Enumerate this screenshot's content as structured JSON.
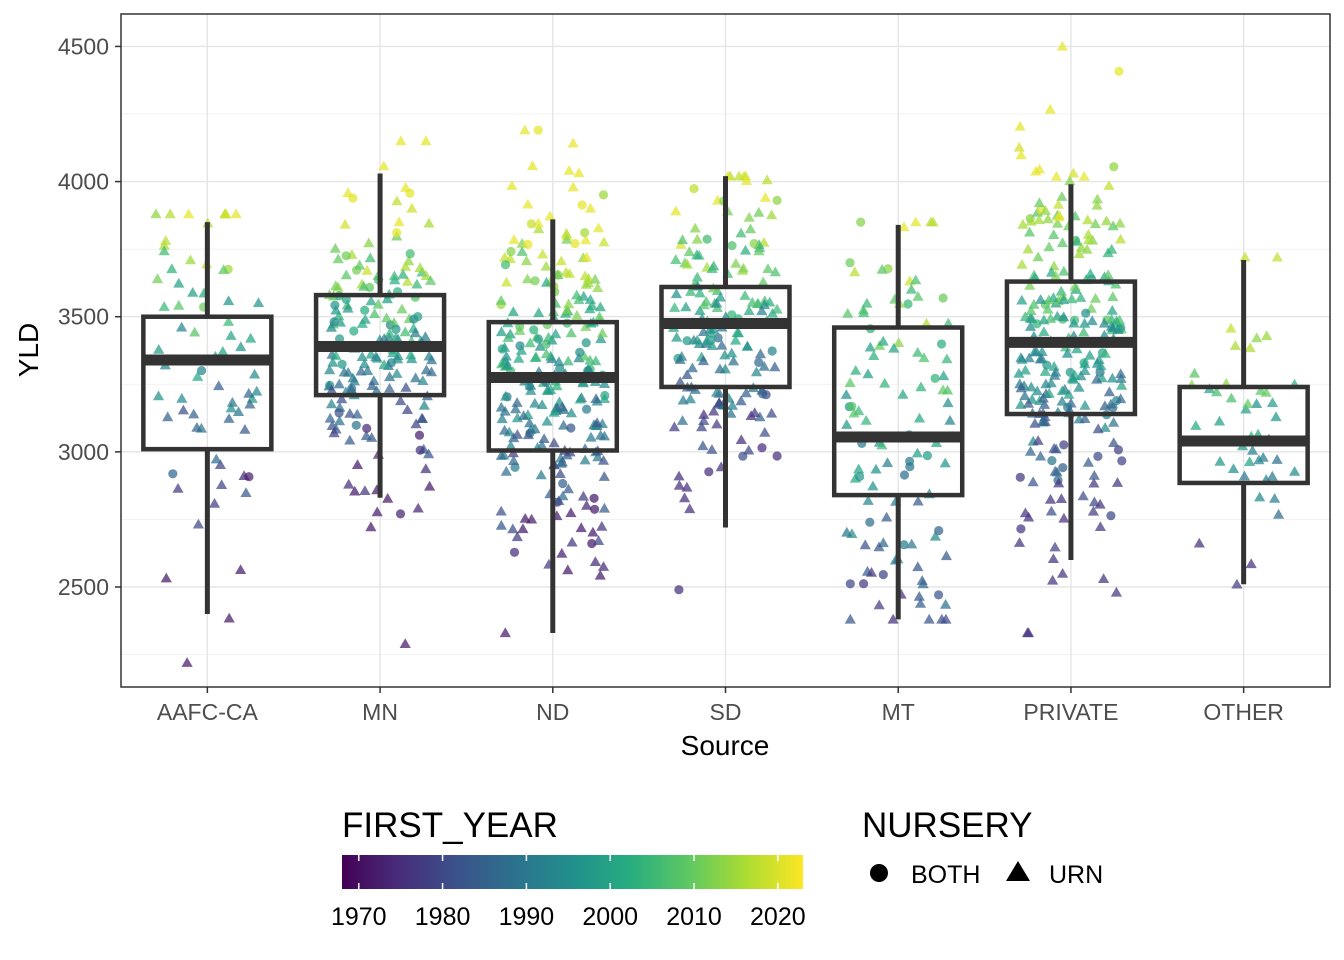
{
  "chart_data": {
    "type": "boxplot",
    "xlabel": "Source",
    "ylabel": "YLD",
    "categories": [
      "AAFC-CA",
      "MN",
      "ND",
      "SD",
      "MT",
      "PRIVATE",
      "OTHER"
    ],
    "ylim": [
      2130,
      4620
    ],
    "yticks": [
      2500,
      3000,
      3500,
      4000,
      4500
    ],
    "grid": true,
    "legend_placement": "bottom",
    "boxes": [
      {
        "category": "AAFC-CA",
        "whisker_low": 2400,
        "q1": 3010,
        "median": 3340,
        "q3": 3500,
        "whisker_high": 3850
      },
      {
        "category": "MN",
        "whisker_low": 2830,
        "q1": 3210,
        "median": 3390,
        "q3": 3580,
        "whisker_high": 4030
      },
      {
        "category": "ND",
        "whisker_low": 2330,
        "q1": 3005,
        "median": 3275,
        "q3": 3480,
        "whisker_high": 3860
      },
      {
        "category": "SD",
        "whisker_low": 2720,
        "q1": 3240,
        "median": 3475,
        "q3": 3610,
        "whisker_high": 4020
      },
      {
        "category": "MT",
        "whisker_low": 2380,
        "q1": 2840,
        "median": 3055,
        "q3": 3460,
        "whisker_high": 3840
      },
      {
        "category": "PRIVATE",
        "whisker_low": 2600,
        "q1": 3140,
        "median": 3405,
        "q3": 3630,
        "whisker_high": 3990
      },
      {
        "category": "OTHER",
        "whisker_low": 2510,
        "q1": 2885,
        "median": 3040,
        "q3": 3240,
        "whisker_high": 3710
      }
    ],
    "point_groups": [
      {
        "category": "AAFC-CA",
        "n": 70,
        "min": 2220,
        "max": 3880,
        "year_low": 1972,
        "year_high": 2021,
        "circle_share": 0.12
      },
      {
        "category": "MN",
        "n": 180,
        "min": 2290,
        "max": 4150,
        "year_low": 1972,
        "year_high": 2021,
        "circle_share": 0.15
      },
      {
        "category": "ND",
        "n": 260,
        "min": 2330,
        "max": 4190,
        "year_low": 1972,
        "year_high": 2021,
        "circle_share": 0.15
      },
      {
        "category": "SD",
        "n": 175,
        "min": 2490,
        "max": 4020,
        "year_low": 1975,
        "year_high": 2021,
        "circle_share": 0.12
      },
      {
        "category": "MT",
        "n": 110,
        "min": 2380,
        "max": 3850,
        "year_low": 1975,
        "year_high": 2021,
        "circle_share": 0.25
      },
      {
        "category": "PRIVATE",
        "n": 260,
        "min": 2330,
        "max": 4500,
        "year_low": 1976,
        "year_high": 2021,
        "circle_share": 0.15
      },
      {
        "category": "OTHER",
        "n": 45,
        "min": 2510,
        "max": 3720,
        "year_low": 1975,
        "year_high": 2018,
        "circle_share": 0.0
      }
    ],
    "legends": {
      "color": {
        "title": "FIRST_YEAR",
        "range": [
          1968,
          2023
        ],
        "ticks": [
          1970,
          1980,
          1990,
          2000,
          2010,
          2020
        ],
        "colors": [
          "#440154",
          "#472D7B",
          "#3B528B",
          "#2C728E",
          "#21908C",
          "#27AD81",
          "#5DC863",
          "#AADC32",
          "#FDE725"
        ]
      },
      "shape": {
        "title": "NURSERY",
        "entries": [
          {
            "label": "BOTH",
            "shape": "circle"
          },
          {
            "label": "URN",
            "shape": "triangle"
          }
        ]
      }
    }
  }
}
